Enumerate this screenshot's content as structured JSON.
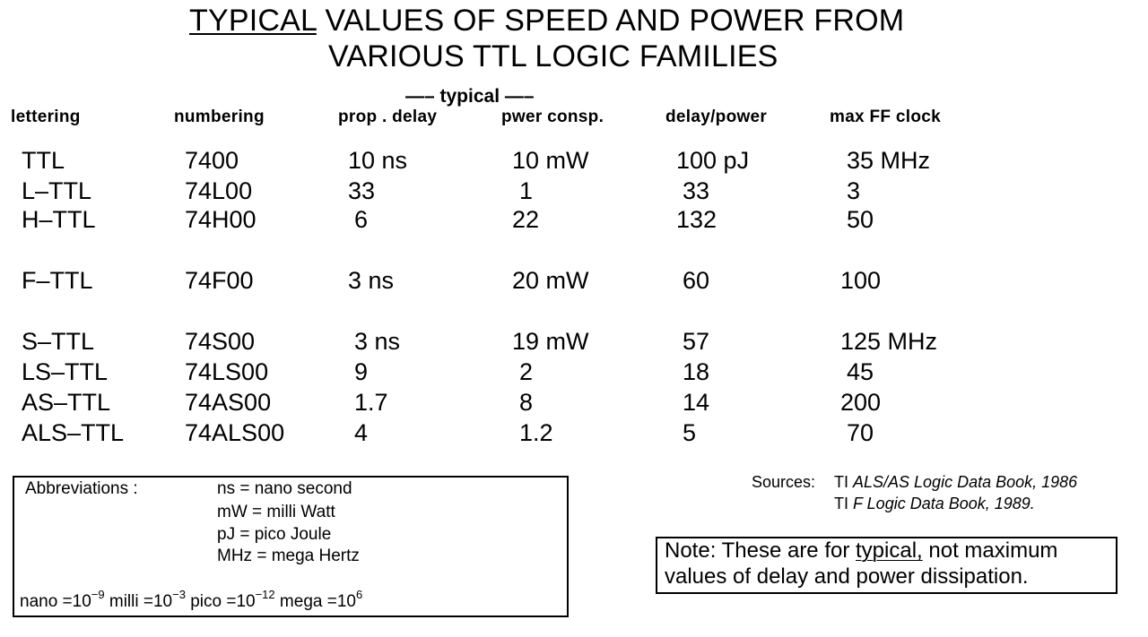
{
  "title": {
    "line1_underlined": "TYPICAL",
    "line1_rest": " VALUES OF SPEED AND POWER FROM",
    "line2": "VARIOUS TTL LOGIC FAMILIES"
  },
  "typical_banner": "—– typical —–",
  "headers": {
    "lettering": "lettering",
    "numbering": "numbering",
    "prop_delay": "prop . delay",
    "power_consp": "pwer consp.",
    "delay_power": "delay/power",
    "max_ff_clock": "max FF clock"
  },
  "rows": [
    {
      "lettering": "TTL",
      "numbering": "7400",
      "prop_delay": "10 ns",
      "power": "10 mW",
      "delay_power": "100 pJ",
      "clock": "35 MHz"
    },
    {
      "lettering": "L–TTL",
      "numbering": "74L00",
      "prop_delay": "33",
      "power": "1",
      "delay_power": "33",
      "clock": "3"
    },
    {
      "lettering": "H–TTL",
      "numbering": "74H00",
      "prop_delay": "6",
      "power": "22",
      "delay_power": "132",
      "clock": "50"
    },
    {
      "lettering": "F–TTL",
      "numbering": "74F00",
      "prop_delay": "3 ns",
      "power": "20 mW",
      "delay_power": "60",
      "clock": "100"
    },
    {
      "lettering": "S–TTL",
      "numbering": "74S00",
      "prop_delay": "3 ns",
      "power": "19 mW",
      "delay_power": "57",
      "clock": "125 MHz"
    },
    {
      "lettering": "LS–TTL",
      "numbering": "74LS00",
      "prop_delay": "9",
      "power": "2",
      "delay_power": "18",
      "clock": "45"
    },
    {
      "lettering": "AS–TTL",
      "numbering": "74AS00",
      "prop_delay": "1.7",
      "power": "8",
      "delay_power": "14",
      "clock": "200"
    },
    {
      "lettering": "ALS–TTL",
      "numbering": "74ALS00",
      "prop_delay": "4",
      "power": "1.2",
      "delay_power": "5",
      "clock": "70"
    }
  ],
  "abbreviations": {
    "label": "Abbreviations :",
    "items": [
      "ns  = nano second",
      "mW = milli Watt",
      "pJ = pico Joule",
      "MHz  = mega Hertz"
    ],
    "powers": {
      "nano_prefix": "nano =10",
      "nano_exp": "−9",
      "milli_prefix": " milli =10",
      "milli_exp": "−3",
      "pico_prefix": " pico =10",
      "pico_exp": "−12",
      "mega_prefix": " mega =10",
      "mega_exp": "6"
    }
  },
  "sources": {
    "label": "Sources:",
    "line1_prefix": "TI ",
    "line1_italic": "ALS/AS Logic Data Book, 1986",
    "line2_prefix": "TI ",
    "line2_italic": "F Logic Data Book, 1989."
  },
  "note": {
    "prefix": "Note: These are for ",
    "underlined": "typical,",
    "rest_line1": " not maximum",
    "line2": "values of delay and power dissipation."
  }
}
